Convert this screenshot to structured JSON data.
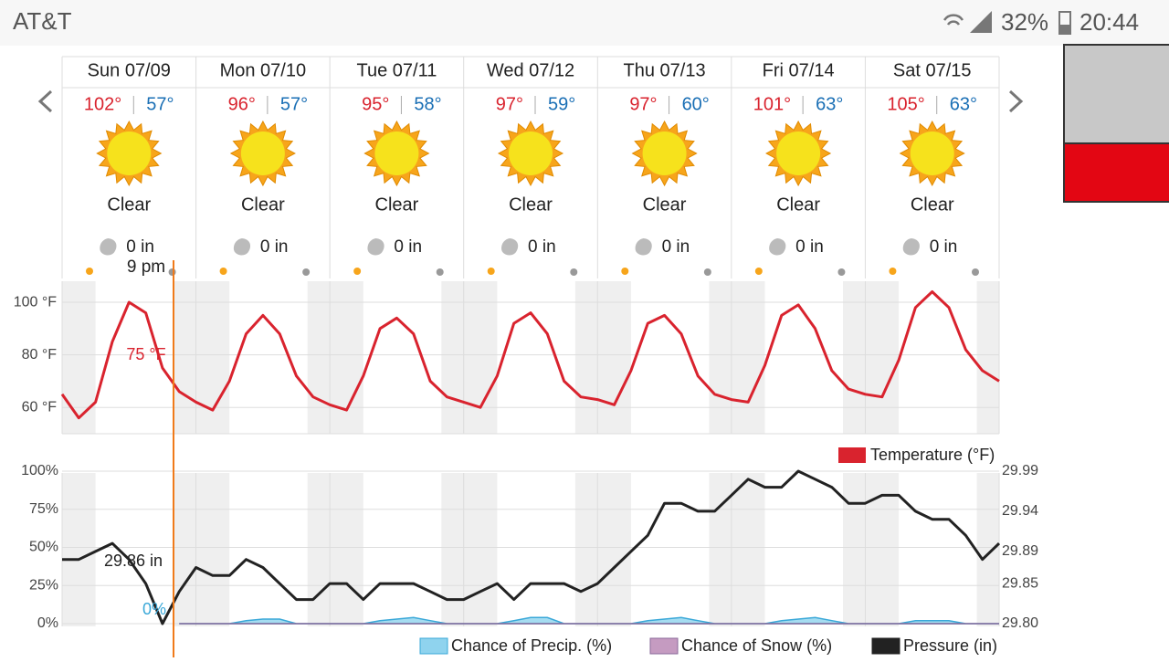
{
  "status_bar": {
    "carrier": "AT&T",
    "battery": "32%",
    "time": "20:44"
  },
  "days": [
    {
      "date": "Sun 07/09",
      "high": "102°",
      "low": "57°",
      "condition": "Clear",
      "precip": "0 in"
    },
    {
      "date": "Mon 07/10",
      "high": "96°",
      "low": "57°",
      "condition": "Clear",
      "precip": "0 in"
    },
    {
      "date": "Tue 07/11",
      "high": "95°",
      "low": "58°",
      "condition": "Clear",
      "precip": "0 in"
    },
    {
      "date": "Wed 07/12",
      "high": "97°",
      "low": "59°",
      "condition": "Clear",
      "precip": "0 in"
    },
    {
      "date": "Thu 07/13",
      "high": "97°",
      "low": "60°",
      "condition": "Clear",
      "precip": "0 in"
    },
    {
      "date": "Fri 07/14",
      "high": "101°",
      "low": "63°",
      "condition": "Clear",
      "precip": "0 in"
    },
    {
      "date": "Sat 07/15",
      "high": "105°",
      "low": "63°",
      "condition": "Clear",
      "precip": "0 in"
    }
  ],
  "cursor": {
    "time": "9 pm",
    "temperature": "75 °F",
    "pressure": "29.86 in",
    "precip": "0%"
  },
  "chart_data": [
    {
      "type": "line",
      "series": [
        {
          "name": "Temperature (°F)",
          "color": "#d9232e",
          "values": [
            65,
            56,
            62,
            85,
            100,
            96,
            75,
            66,
            62,
            59,
            70,
            88,
            95,
            88,
            72,
            64,
            61,
            59,
            72,
            90,
            94,
            88,
            70,
            64,
            62,
            60,
            72,
            92,
            96,
            88,
            70,
            64,
            63,
            61,
            74,
            92,
            95,
            88,
            72,
            65,
            63,
            62,
            76,
            95,
            99,
            90,
            74,
            67,
            65,
            64,
            78,
            98,
            104,
            98,
            82,
            74,
            70
          ]
        }
      ],
      "ylim": [
        50,
        108
      ],
      "yticks": [
        {
          "value": 60,
          "label": "60 °F"
        },
        {
          "value": 80,
          "label": "80 °F"
        },
        {
          "value": 100,
          "label": "100 °F"
        }
      ],
      "grid": true
    },
    {
      "type": "combo",
      "series": [
        {
          "name": "Chance of Precip. (%)",
          "type": "area",
          "color": "#8fd3ee",
          "stroke": "#3aa8d8",
          "values": [
            null,
            null,
            null,
            null,
            null,
            null,
            null,
            0,
            0,
            0,
            0,
            2,
            3,
            3,
            0,
            0,
            0,
            0,
            0,
            2,
            3,
            4,
            2,
            0,
            0,
            0,
            0,
            2,
            4,
            4,
            0,
            0,
            0,
            0,
            0,
            2,
            3,
            4,
            2,
            0,
            0,
            0,
            0,
            2,
            3,
            4,
            2,
            0,
            0,
            0,
            0,
            2,
            2,
            2,
            0,
            0,
            0
          ]
        },
        {
          "name": "Chance of Snow (%)",
          "type": "area",
          "color": "#c59bc1",
          "stroke": "#8a6a9a",
          "values": [
            null,
            null,
            null,
            null,
            null,
            null,
            null,
            0,
            0,
            0,
            0,
            0,
            0,
            0,
            0,
            0,
            0,
            0,
            0,
            0,
            0,
            0,
            0,
            0,
            0,
            0,
            0,
            0,
            0,
            0,
            0,
            0,
            0,
            0,
            0,
            0,
            0,
            0,
            0,
            0,
            0,
            0,
            0,
            0,
            0,
            0,
            0,
            0,
            0,
            0,
            0,
            0,
            0,
            0,
            0,
            0,
            0
          ]
        },
        {
          "name": "Pressure (in)",
          "type": "line",
          "axis": "y2",
          "color": "#222222",
          "values": [
            29.88,
            29.88,
            29.89,
            29.9,
            29.88,
            29.85,
            29.8,
            29.84,
            29.87,
            29.86,
            29.86,
            29.88,
            29.87,
            29.85,
            29.83,
            29.83,
            29.85,
            29.85,
            29.83,
            29.85,
            29.85,
            29.85,
            29.84,
            29.83,
            29.83,
            29.84,
            29.85,
            29.83,
            29.85,
            29.85,
            29.85,
            29.84,
            29.85,
            29.87,
            29.89,
            29.91,
            29.95,
            29.95,
            29.94,
            29.94,
            29.96,
            29.98,
            29.97,
            29.97,
            29.99,
            29.98,
            29.97,
            29.95,
            29.95,
            29.96,
            29.96,
            29.94,
            29.93,
            29.93,
            29.91,
            29.88,
            29.9
          ]
        }
      ],
      "ylim": [
        0,
        100
      ],
      "yticks": [
        {
          "value": 0,
          "label": "0%"
        },
        {
          "value": 25,
          "label": "25%"
        },
        {
          "value": 50,
          "label": "50%"
        },
        {
          "value": 75,
          "label": "75%"
        },
        {
          "value": 100,
          "label": "100%"
        }
      ],
      "y2lim": [
        29.8,
        29.99
      ],
      "y2ticks": [
        {
          "value": 29.8,
          "label": "29.80"
        },
        29.85,
        29.89,
        29.94,
        29.99
      ],
      "grid": true
    }
  ]
}
